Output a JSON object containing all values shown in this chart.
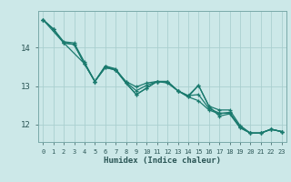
{
  "xlabel": "Humidex (Indice chaleur)",
  "bg_color": "#cce8e8",
  "line_color": "#1a7a6e",
  "grid_color": "#aacfcf",
  "axis_color": "#7aaaaa",
  "tick_color": "#2a5555",
  "xlim": [
    -0.5,
    23.5
  ],
  "ylim": [
    11.55,
    14.95
  ],
  "yticks": [
    12,
    13,
    14
  ],
  "xticks": [
    0,
    1,
    2,
    3,
    4,
    5,
    6,
    7,
    8,
    9,
    10,
    11,
    12,
    13,
    14,
    15,
    16,
    17,
    18,
    19,
    20,
    21,
    22,
    23
  ],
  "series": [
    [
      0,
      14.72
    ],
    [
      1,
      14.48
    ],
    [
      2,
      14.15
    ],
    [
      3,
      14.12
    ],
    [
      4,
      13.62
    ],
    [
      5,
      13.12
    ],
    [
      6,
      13.48
    ],
    [
      7,
      13.42
    ],
    [
      8,
      13.08
    ],
    [
      9,
      12.78
    ],
    [
      10,
      12.95
    ],
    [
      11,
      13.12
    ],
    [
      12,
      13.12
    ],
    [
      13,
      12.88
    ],
    [
      14,
      12.75
    ],
    [
      15,
      13.02
    ],
    [
      16,
      12.48
    ],
    [
      17,
      12.38
    ],
    [
      18,
      12.38
    ],
    [
      19,
      11.98
    ],
    [
      20,
      11.78
    ],
    [
      21,
      11.78
    ],
    [
      22,
      11.88
    ],
    [
      23,
      11.82
    ]
  ],
  "series2": [
    [
      0,
      14.72
    ],
    [
      1,
      14.48
    ],
    [
      2,
      14.12
    ],
    [
      3,
      14.08
    ],
    [
      4,
      13.58
    ],
    [
      5,
      13.12
    ],
    [
      6,
      13.48
    ],
    [
      7,
      13.42
    ],
    [
      8,
      13.12
    ],
    [
      9,
      12.98
    ],
    [
      10,
      13.08
    ],
    [
      11,
      13.12
    ],
    [
      12,
      13.08
    ],
    [
      13,
      12.88
    ],
    [
      14,
      12.72
    ],
    [
      15,
      12.62
    ],
    [
      16,
      12.38
    ],
    [
      17,
      12.28
    ],
    [
      18,
      12.32
    ],
    [
      19,
      11.92
    ],
    [
      20,
      11.78
    ],
    [
      21,
      11.78
    ],
    [
      22,
      11.88
    ],
    [
      23,
      11.82
    ]
  ],
  "series3": [
    [
      0,
      14.72
    ],
    [
      2,
      14.12
    ],
    [
      4,
      13.58
    ],
    [
      5,
      13.12
    ],
    [
      6,
      13.52
    ],
    [
      7,
      13.42
    ],
    [
      8,
      13.08
    ],
    [
      9,
      12.78
    ],
    [
      10,
      12.95
    ],
    [
      11,
      13.12
    ],
    [
      12,
      13.12
    ],
    [
      13,
      12.88
    ],
    [
      14,
      12.72
    ],
    [
      15,
      13.02
    ],
    [
      16,
      12.48
    ],
    [
      17,
      12.22
    ],
    [
      18,
      12.28
    ],
    [
      19,
      11.92
    ],
    [
      20,
      11.78
    ],
    [
      21,
      11.78
    ],
    [
      22,
      11.88
    ],
    [
      23,
      11.82
    ]
  ],
  "series4": [
    [
      0,
      14.72
    ],
    [
      1,
      14.48
    ],
    [
      2,
      14.12
    ],
    [
      3,
      14.08
    ],
    [
      4,
      13.58
    ],
    [
      5,
      13.12
    ],
    [
      6,
      13.52
    ],
    [
      7,
      13.45
    ],
    [
      8,
      13.1
    ],
    [
      9,
      12.88
    ],
    [
      10,
      13.02
    ],
    [
      11,
      13.12
    ],
    [
      12,
      13.1
    ],
    [
      13,
      12.88
    ],
    [
      14,
      12.75
    ],
    [
      15,
      12.78
    ],
    [
      16,
      12.42
    ],
    [
      17,
      12.3
    ],
    [
      18,
      12.3
    ],
    [
      19,
      11.95
    ],
    [
      20,
      11.78
    ],
    [
      21,
      11.78
    ],
    [
      22,
      11.88
    ],
    [
      23,
      11.82
    ]
  ]
}
